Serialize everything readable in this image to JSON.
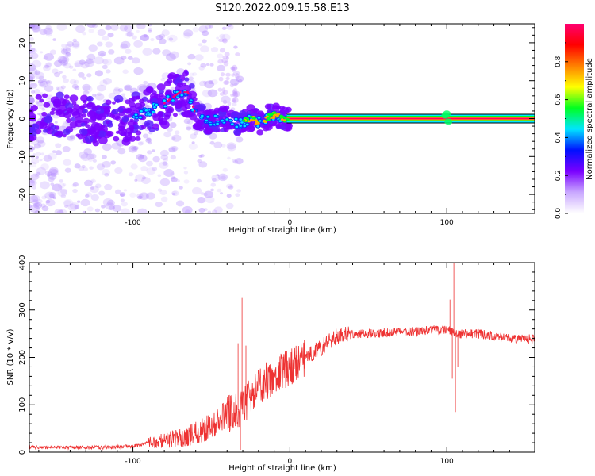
{
  "title": "S120.2022.009.15.58.E13",
  "chart_data": [
    {
      "type": "heatmap",
      "xlabel": "Height of straight line (km)",
      "ylabel": "Frequency (Hz)",
      "xlim": [
        -166,
        156
      ],
      "ylim": [
        -25,
        25
      ],
      "xticks": [
        -100,
        0,
        100
      ],
      "xtick_labels": [
        "-100",
        "0",
        "100"
      ],
      "yticks": [
        -20,
        -10,
        0,
        10,
        20
      ],
      "ytick_labels": [
        "-20",
        "-10",
        "0",
        "10",
        "20"
      ],
      "grid": false,
      "colorbar": {
        "label": "Normalized spectral amplitude",
        "range": [
          0,
          1
        ],
        "ticks": [
          0.0,
          0.2,
          0.4,
          0.6,
          0.8
        ],
        "tick_labels": [
          "0.0",
          "0.2",
          "0.4",
          "0.6",
          "0.8"
        ],
        "colors": [
          "#ffffff",
          "#c9a8ff",
          "#7a00ff",
          "#0010ff",
          "#00e5ff",
          "#00ff20",
          "#ffff00",
          "#ff8000",
          "#ff0000",
          "#ff0070"
        ]
      },
      "trace": {
        "x": [
          -166,
          -140,
          -120,
          -100,
          -90,
          -80,
          -70,
          -65,
          -60,
          -55,
          -50,
          -45,
          -40,
          -35,
          -30,
          -25,
          -20,
          -15,
          -10,
          -5,
          0,
          10,
          50,
          90,
          100,
          110,
          156
        ],
        "y": [
          0,
          1,
          -1,
          0,
          2,
          4,
          7,
          7,
          1,
          0,
          -1,
          0,
          0,
          -1,
          -1,
          0,
          -1,
          0,
          1,
          0,
          0,
          0,
          0,
          0,
          0,
          0,
          0
        ]
      }
    },
    {
      "type": "line",
      "xlabel": "Height of straight line (km)",
      "ylabel": "SNR (10 * v/v)",
      "xlim": [
        -166,
        156
      ],
      "ylim": [
        0,
        400
      ],
      "xticks": [
        -100,
        0,
        100
      ],
      "xtick_labels": [
        "-100",
        "0",
        "100"
      ],
      "yticks": [
        0,
        100,
        200,
        300,
        400
      ],
      "ytick_labels": [
        "0",
        "100",
        "200",
        "300",
        "400"
      ],
      "grid": false,
      "line_color": "#ee3333",
      "envelope": {
        "x": [
          -166,
          -120,
          -100,
          -90,
          -80,
          -70,
          -60,
          -50,
          -45,
          -40,
          -35,
          -30,
          -25,
          -20,
          -15,
          -10,
          -5,
          0,
          5,
          10,
          15,
          20,
          25,
          30,
          40,
          50,
          60,
          80,
          90,
          100,
          103,
          106,
          110,
          120,
          130,
          140,
          150,
          156
        ],
        "y": [
          10,
          10,
          12,
          20,
          25,
          30,
          40,
          55,
          70,
          80,
          85,
          95,
          120,
          140,
          150,
          160,
          170,
          180,
          190,
          200,
          210,
          220,
          235,
          245,
          250,
          250,
          252,
          255,
          258,
          260,
          255,
          250,
          250,
          250,
          245,
          240,
          238,
          240
        ]
      },
      "spikes": [
        {
          "x": -30.5,
          "y": 327
        },
        {
          "x": -31.5,
          "y": 5
        },
        {
          "x": -33,
          "y": 230
        },
        {
          "x": -28,
          "y": 225
        },
        {
          "x": 102,
          "y": 322
        },
        {
          "x": 104.5,
          "y": 400
        },
        {
          "x": 105.5,
          "y": 85
        },
        {
          "x": 107,
          "y": 180
        },
        {
          "x": 103.5,
          "y": 155
        }
      ]
    }
  ]
}
